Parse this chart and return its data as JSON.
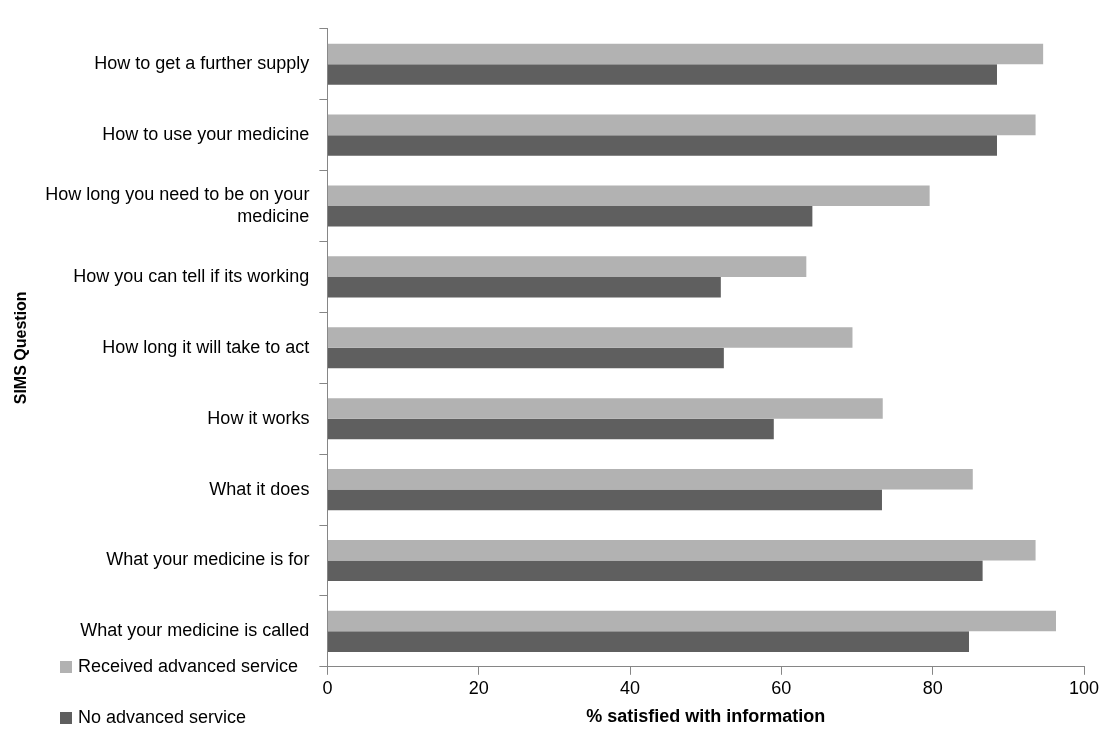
{
  "chart_data": {
    "type": "bar",
    "orientation": "horizontal",
    "xlabel": "% satisfied with information",
    "ylabel": "SIMS Question",
    "categories": [
      "How to get a further supply",
      "How to use your medicine",
      "How long you need to be on your medicine",
      "How you can tell if its working",
      "How long it will take to act",
      "How it works",
      "What it does",
      "What your medicine is for",
      "What your medicine is called"
    ],
    "series": [
      {
        "name": "Received advanced service",
        "color": "#b2b2b2",
        "values": [
          94.6,
          93.6,
          79.6,
          63.3,
          69.4,
          73.4,
          85.3,
          93.6,
          96.3
        ]
      },
      {
        "name": "No advanced service",
        "color": "#5f5f5f",
        "values": [
          88.5,
          88.5,
          64.1,
          52.0,
          52.4,
          59.0,
          73.3,
          86.6,
          84.8
        ]
      }
    ],
    "xlim": [
      0,
      100
    ],
    "xticks": [
      0,
      20,
      40,
      60,
      80,
      100
    ],
    "grid": false,
    "legend": "bottom left"
  }
}
